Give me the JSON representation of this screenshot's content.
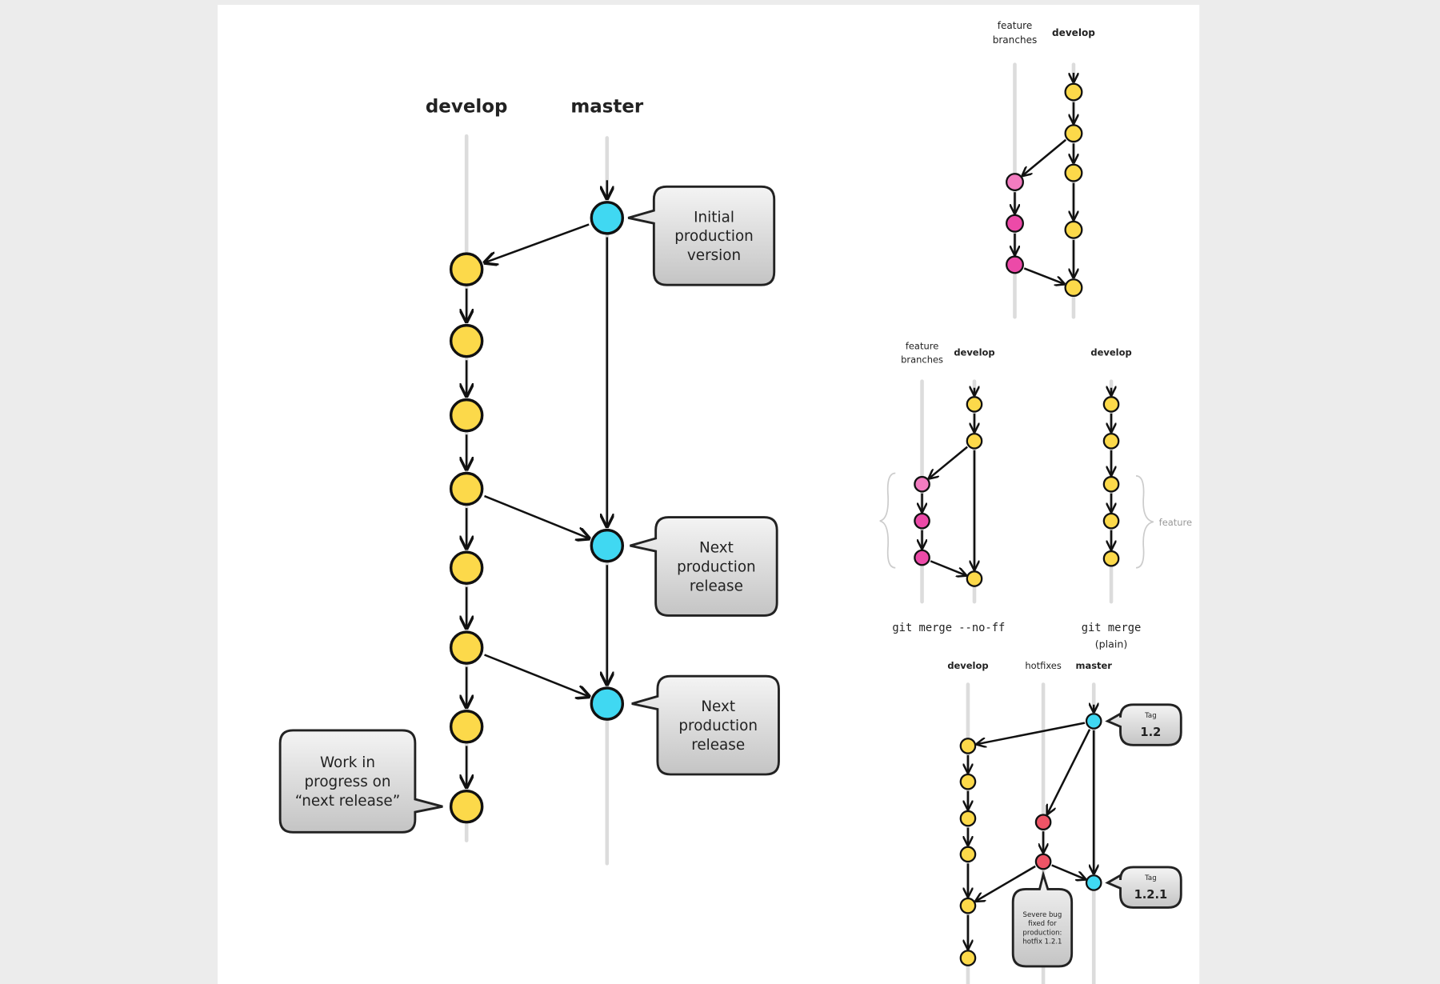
{
  "colors": {
    "develop": "#fcd94a",
    "master": "#40d8f2",
    "feature": "#ec4aa8",
    "feature_light": "#f27cc0",
    "hotfix": "#ee5466",
    "background": "#ececec",
    "panel": "#ffffff"
  },
  "main": {
    "develop_label": "develop",
    "master_label": "master",
    "bubbles": {
      "initial": [
        "Initial",
        "production",
        "version"
      ],
      "next1": [
        "Next",
        "production",
        "release"
      ],
      "next2": [
        "Next",
        "production",
        "release"
      ],
      "wip": [
        "Work in",
        "progress on",
        "“next release”"
      ]
    }
  },
  "feature_diagram": {
    "feature_label": [
      "feature",
      "branches"
    ],
    "develop_label": "develop"
  },
  "merge_noff": {
    "feature_label": [
      "feature",
      "branches"
    ],
    "develop_label": "develop",
    "caption": "git merge --no-ff"
  },
  "merge_plain": {
    "develop_label": "develop",
    "brace_label": "feature",
    "caption": [
      "git merge",
      "(plain)"
    ]
  },
  "hotfix": {
    "develop_label": "develop",
    "hotfixes_label": "hotfixes",
    "master_label": "master",
    "tag1": {
      "label": "Tag",
      "value": "1.2"
    },
    "tag2": {
      "label": "Tag",
      "value": "1.2.1"
    },
    "note": [
      "Severe bug",
      "fixed for",
      "production:",
      "hotfix 1.2.1"
    ]
  }
}
